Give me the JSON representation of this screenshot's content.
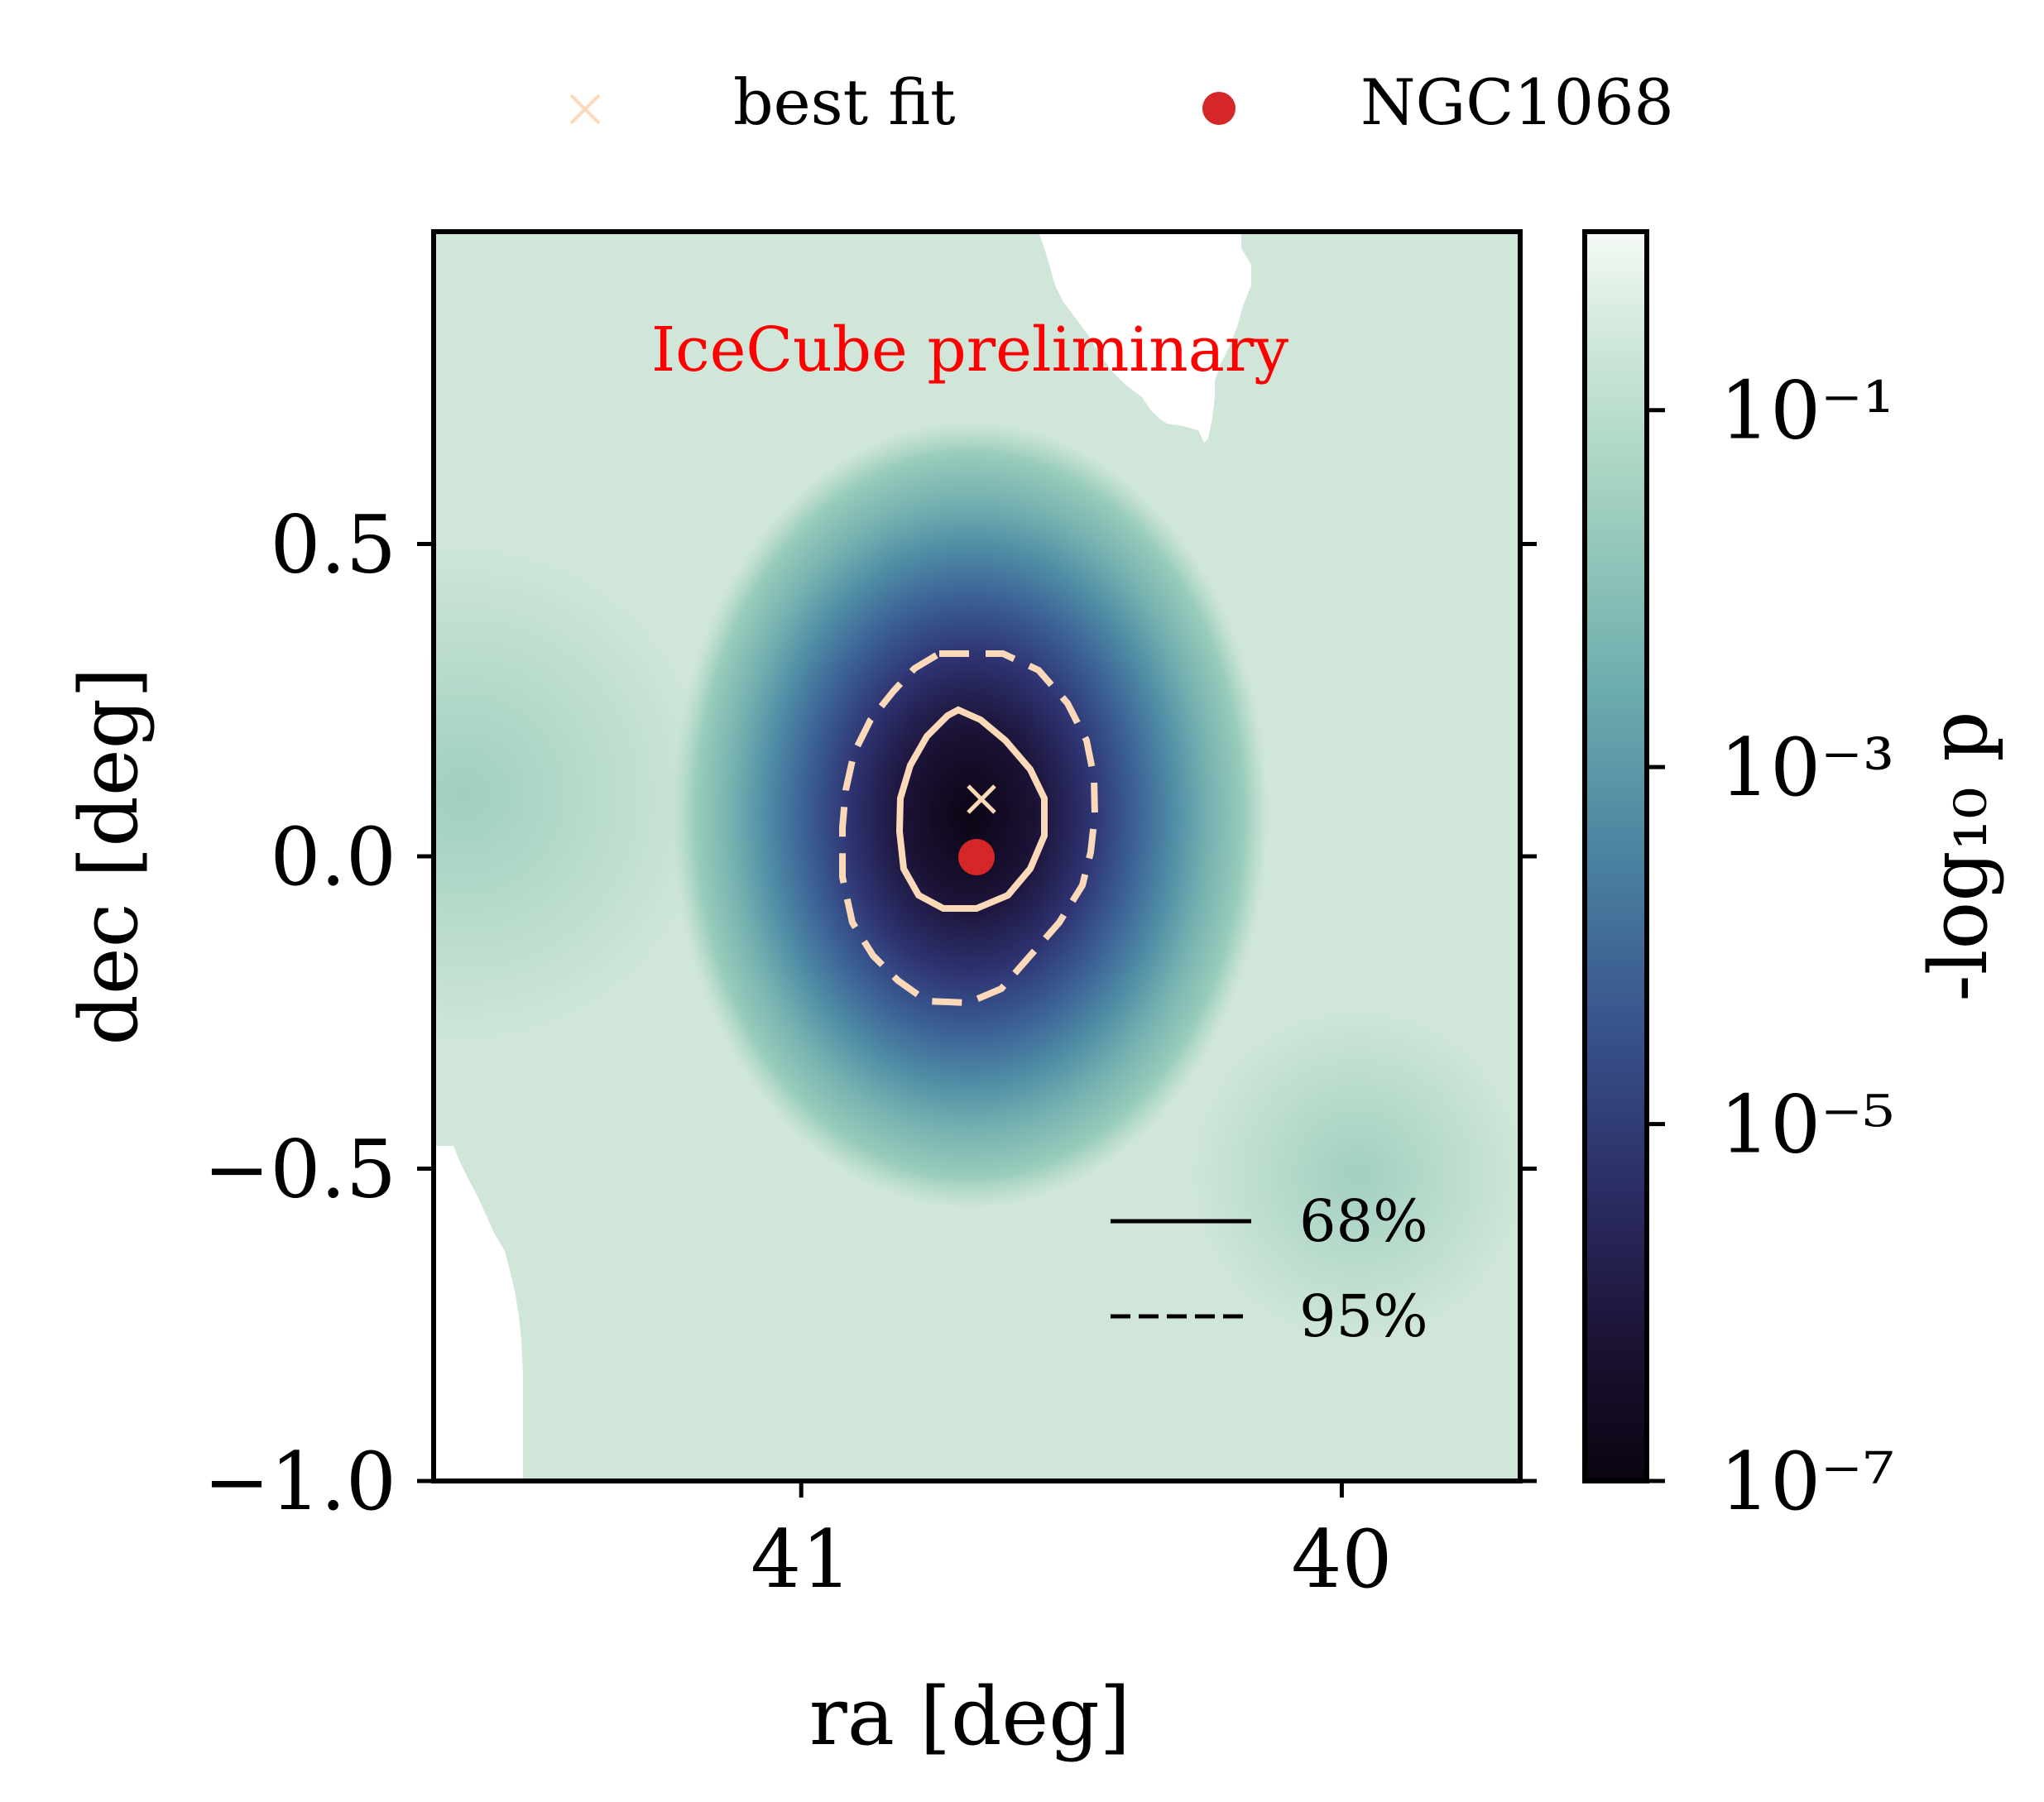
{
  "chart_data": {
    "type": "heatmap",
    "title": "",
    "annotation": "IceCube preliminary",
    "xlabel": "ra [deg]",
    "ylabel": "dec [deg]",
    "x_inverted": true,
    "xlim": [
      41.68,
      39.67
    ],
    "ylim": [
      -1.0,
      1.0
    ],
    "xticks": [
      41,
      40
    ],
    "xtick_labels": [
      "41",
      "40"
    ],
    "yticks": [
      0.5,
      0.0,
      -0.5,
      -1.0
    ],
    "ytick_labels": [
      "0.5",
      "0.0",
      "−0.5",
      "−1.0"
    ],
    "grid": false,
    "colorbar": {
      "label": "-log₁₀ p",
      "scale": "log",
      "range_p": [
        1e-07,
        1.0
      ],
      "colormap": "cubehelix-green-blue (light at high p, dark at low p)",
      "ticks": [
        {
          "value": 0.1,
          "label": "10⁻¹"
        },
        {
          "value": 0.001,
          "label": "10⁻³"
        },
        {
          "value": 1e-05,
          "label": "10⁻⁵"
        },
        {
          "value": 1e-07,
          "label": "10⁻⁷"
        }
      ]
    },
    "points": [
      {
        "name": "best fit",
        "ra": 40.65,
        "dec": 0.08,
        "marker": "x",
        "color": "#fcd9b8"
      },
      {
        "name": "NGC1068",
        "ra": 40.67,
        "dec": -0.013,
        "marker": "o",
        "color": "#d62728"
      }
    ],
    "contour_levels": [
      {
        "label": "68%",
        "style": "solid"
      },
      {
        "label": "95%",
        "style": "dashed"
      }
    ],
    "top_legend": [
      {
        "label": "best fit",
        "marker": "x",
        "color": "#fcd9b8"
      },
      {
        "label": "NGC1068",
        "marker": "o",
        "color": "#d62728"
      }
    ],
    "contour_legend": [
      {
        "label": "68%",
        "style": "solid"
      },
      {
        "label": "95%",
        "style": "dashed"
      }
    ],
    "colors": {
      "contour": "#fcd9b8",
      "annotation": "#ff0000",
      "axis": "#000000"
    }
  }
}
